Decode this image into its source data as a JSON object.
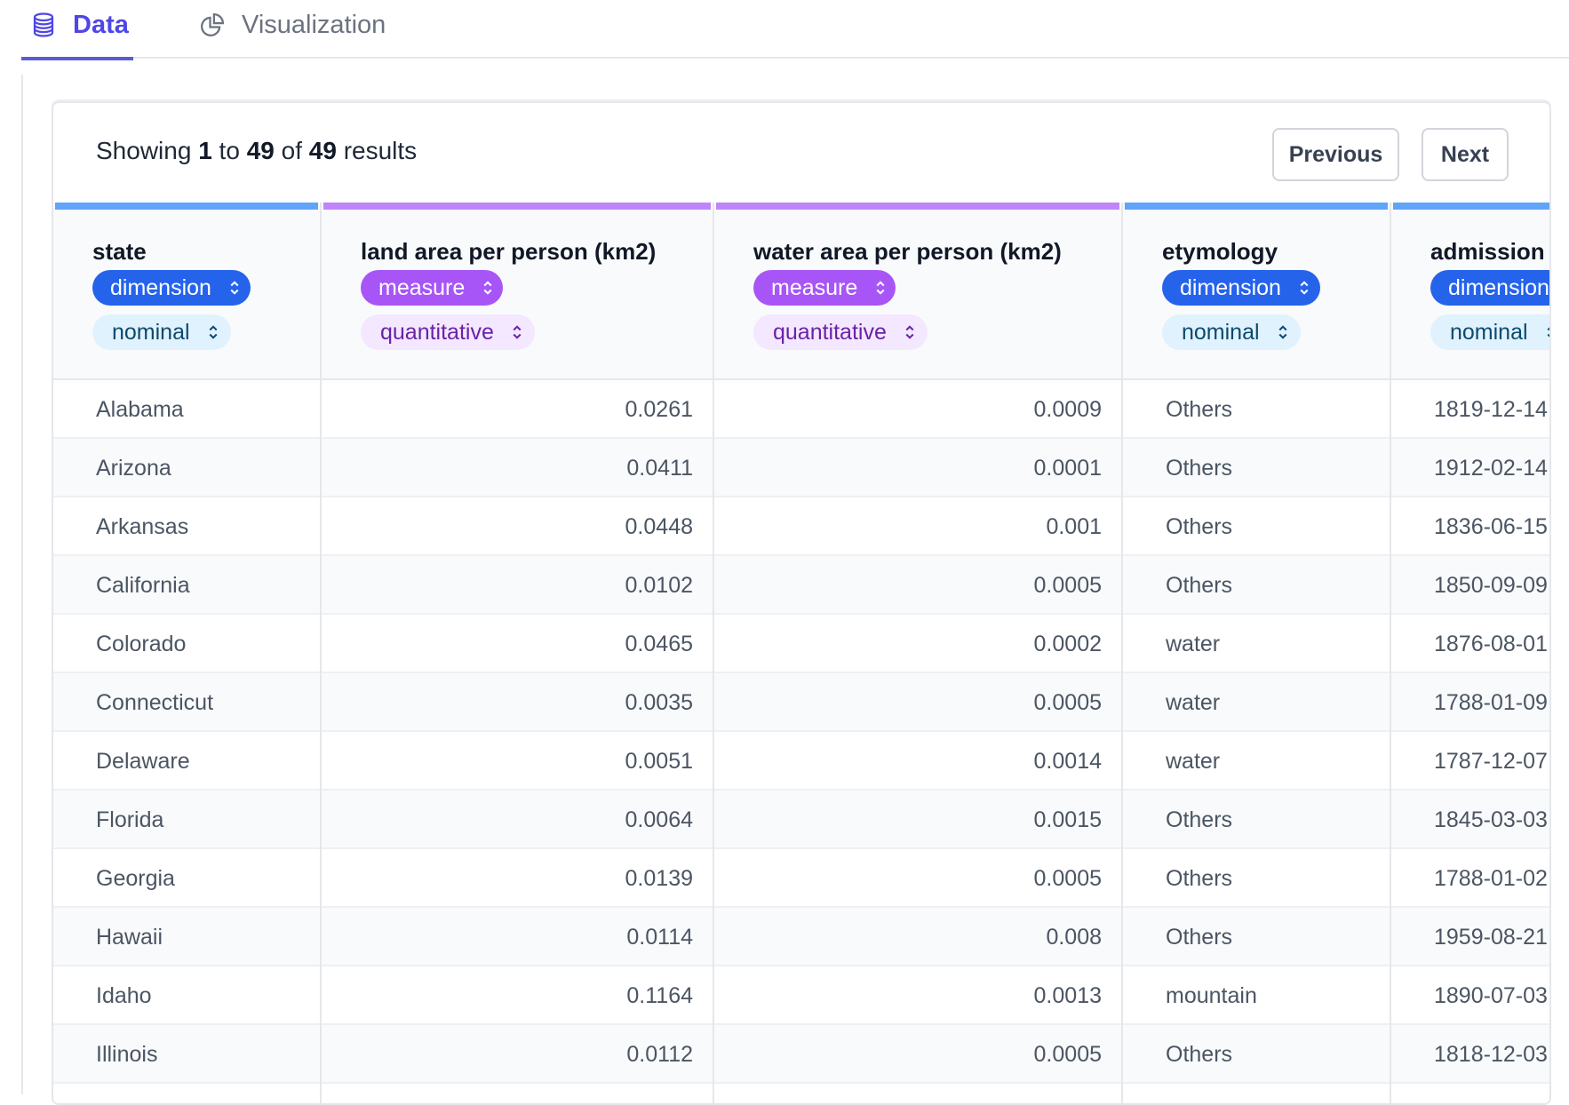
{
  "tabs": [
    {
      "label": "Data",
      "icon": "database-icon",
      "active": true
    },
    {
      "label": "Visualization",
      "icon": "pie-chart-icon",
      "active": false
    }
  ],
  "summary": {
    "prefix": "Showing",
    "start": "1",
    "mid1": "to",
    "end": "49",
    "mid2": "of",
    "total": "49",
    "suffix": "results"
  },
  "pagination": {
    "previous_label": "Previous",
    "next_label": "Next"
  },
  "columns": [
    {
      "name": "state",
      "role": "dimension",
      "type": "nominal"
    },
    {
      "name": "land area per person (km2)",
      "role": "measure",
      "type": "quantitative"
    },
    {
      "name": "water area per person (km2)",
      "role": "measure",
      "type": "quantitative"
    },
    {
      "name": "etymology",
      "role": "dimension",
      "type": "nominal"
    },
    {
      "name": "admission",
      "role": "dimension",
      "type": "nominal"
    }
  ],
  "rows": [
    [
      "Alabama",
      "0.0261",
      "0.0009",
      "Others",
      "1819-12-14"
    ],
    [
      "Arizona",
      "0.0411",
      "0.0001",
      "Others",
      "1912-02-14"
    ],
    [
      "Arkansas",
      "0.0448",
      "0.001",
      "Others",
      "1836-06-15"
    ],
    [
      "California",
      "0.0102",
      "0.0005",
      "Others",
      "1850-09-09"
    ],
    [
      "Colorado",
      "0.0465",
      "0.0002",
      "water",
      "1876-08-01"
    ],
    [
      "Connecticut",
      "0.0035",
      "0.0005",
      "water",
      "1788-01-09"
    ],
    [
      "Delaware",
      "0.0051",
      "0.0014",
      "water",
      "1787-12-07"
    ],
    [
      "Florida",
      "0.0064",
      "0.0015",
      "Others",
      "1845-03-03"
    ],
    [
      "Georgia",
      "0.0139",
      "0.0005",
      "Others",
      "1788-01-02"
    ],
    [
      "Hawaii",
      "0.0114",
      "0.008",
      "Others",
      "1959-08-21"
    ],
    [
      "Idaho",
      "0.1164",
      "0.0013",
      "mountain",
      "1890-07-03"
    ],
    [
      "Illinois",
      "0.0112",
      "0.0005",
      "Others",
      "1818-12-03"
    ],
    [
      "",
      "",
      "",
      "",
      ""
    ]
  ],
  "colors": {
    "accent": "#4f46e5",
    "dimension": "#2563eb",
    "measure": "#a855f7",
    "nominal_bg": "#e0f2fe",
    "quantitative_bg": "#f3e8ff"
  }
}
